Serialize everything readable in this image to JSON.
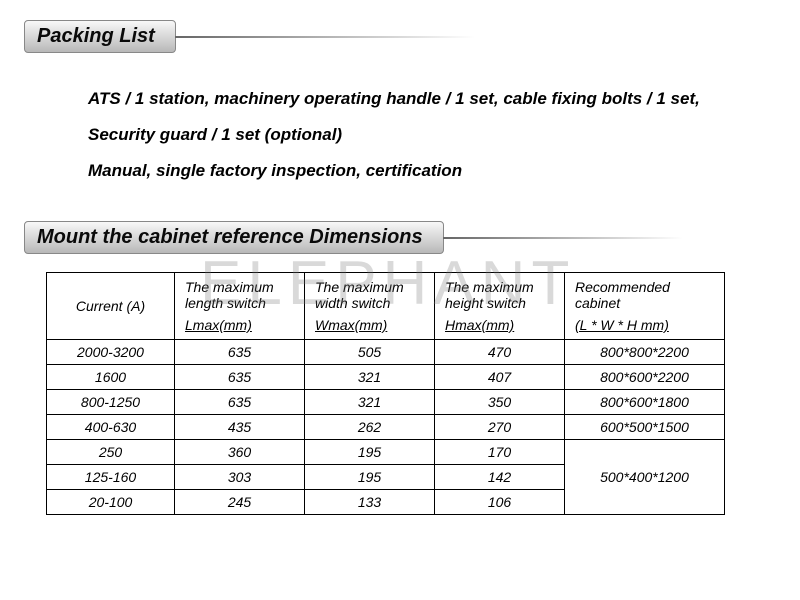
{
  "headers": {
    "packing": "Packing List",
    "dimensions": "Mount the cabinet reference Dimensions"
  },
  "packing_lines": [
    "ATS / 1 station, machinery operating handle / 1 set, cable fixing bolts / 1 set,",
    "Security guard / 1 set (optional)",
    "Manual, single factory inspection, certification"
  ],
  "table": {
    "columns": [
      {
        "top": "Current (A)",
        "sub": ""
      },
      {
        "top": "The maximum length switch",
        "sub": "Lmax(mm)"
      },
      {
        "top": "The maximum width switch",
        "sub": "Wmax(mm)"
      },
      {
        "top": "The maximum height switch",
        "sub": "Hmax(mm)"
      },
      {
        "top": "Recommended cabinet",
        "sub": "(L * W * H mm)"
      }
    ],
    "rows": [
      {
        "c0": "2000-3200",
        "c1": "635",
        "c2": "505",
        "c3": "470",
        "c4": "800*800*2200"
      },
      {
        "c0": "1600",
        "c1": "635",
        "c2": "321",
        "c3": "407",
        "c4": "800*600*2200"
      },
      {
        "c0": "800-1250",
        "c1": "635",
        "c2": "321",
        "c3": "350",
        "c4": "800*600*1800"
      },
      {
        "c0": "400-630",
        "c1": "435",
        "c2": "262",
        "c3": "270",
        "c4": "600*500*1500"
      },
      {
        "c0": "250",
        "c1": "360",
        "c2": "195",
        "c3": "170"
      },
      {
        "c0": "125-160",
        "c1": "303",
        "c2": "195",
        "c3": "142"
      },
      {
        "c0": "20-100",
        "c1": "245",
        "c2": "133",
        "c3": "106"
      }
    ],
    "merged_cabinet": "500*400*1200"
  },
  "watermark": "ELEPHANT",
  "style": {
    "header_bg_gradient": [
      "#f8f8f8",
      "#d8d8d8",
      "#b8b8b8"
    ],
    "header_border": "#888888",
    "text_color": "#000000",
    "table_border": "#000000",
    "watermark_color": "rgba(120,120,120,0.28)",
    "body_bg": "#ffffff",
    "italic": true
  }
}
